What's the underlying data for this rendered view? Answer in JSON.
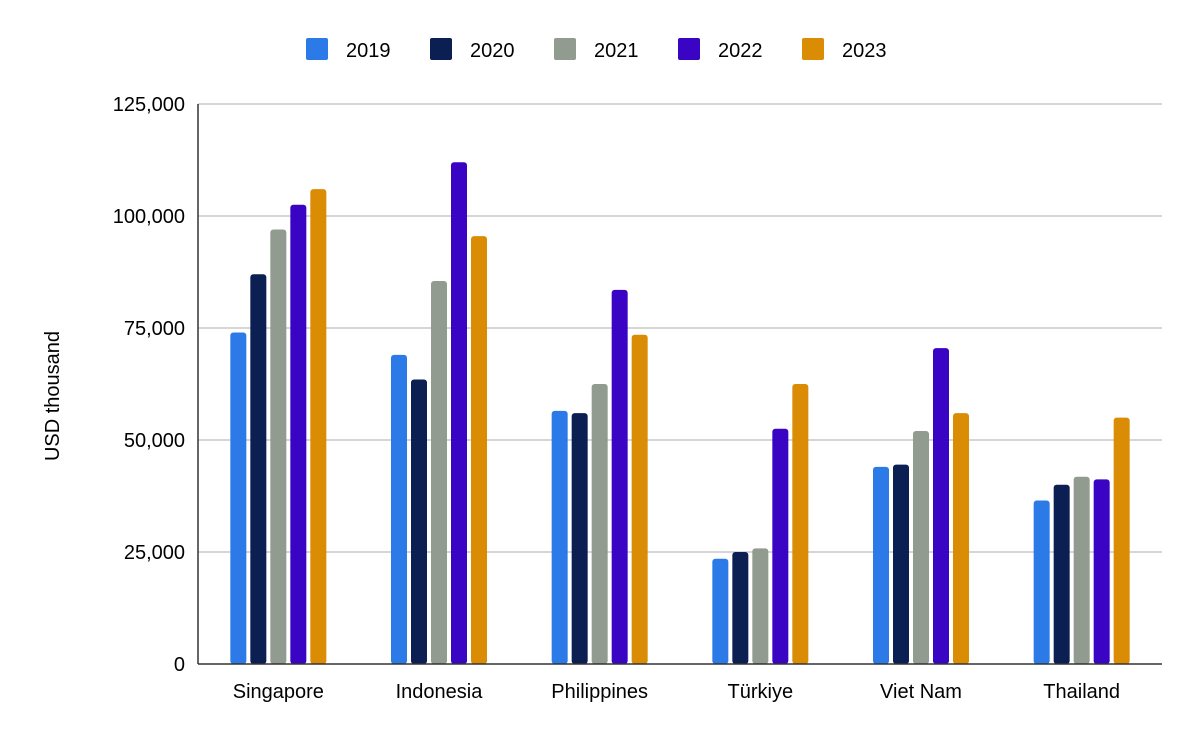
{
  "chart_data": {
    "type": "bar",
    "title": "",
    "xlabel": "",
    "ylabel": "USD thousand",
    "ylim": [
      0,
      125000
    ],
    "yticks": [
      0,
      25000,
      50000,
      75000,
      100000,
      125000
    ],
    "ytick_labels": [
      "0",
      "25,000",
      "50,000",
      "75,000",
      "100,000",
      "125,000"
    ],
    "grid": true,
    "legend_position": "top",
    "categories": [
      "Singapore",
      "Indonesia",
      "Philippines",
      "Türkiye",
      "Viet Nam",
      "Thailand"
    ],
    "series": [
      {
        "name": "2019",
        "color": "#2b7ae8",
        "values": [
          74000,
          69000,
          56500,
          23500,
          44000,
          36500
        ]
      },
      {
        "name": "2020",
        "color": "#0c1f52",
        "values": [
          87000,
          63500,
          56000,
          25000,
          44500,
          40000
        ]
      },
      {
        "name": "2021",
        "color": "#929b8f",
        "values": [
          97000,
          85500,
          62500,
          25800,
          52000,
          41800
        ]
      },
      {
        "name": "2022",
        "color": "#3a04c4",
        "values": [
          102500,
          112000,
          83500,
          52500,
          70500,
          41200
        ]
      },
      {
        "name": "2023",
        "color": "#d98c04",
        "values": [
          106000,
          95500,
          73500,
          62500,
          56000,
          55000
        ]
      }
    ]
  }
}
